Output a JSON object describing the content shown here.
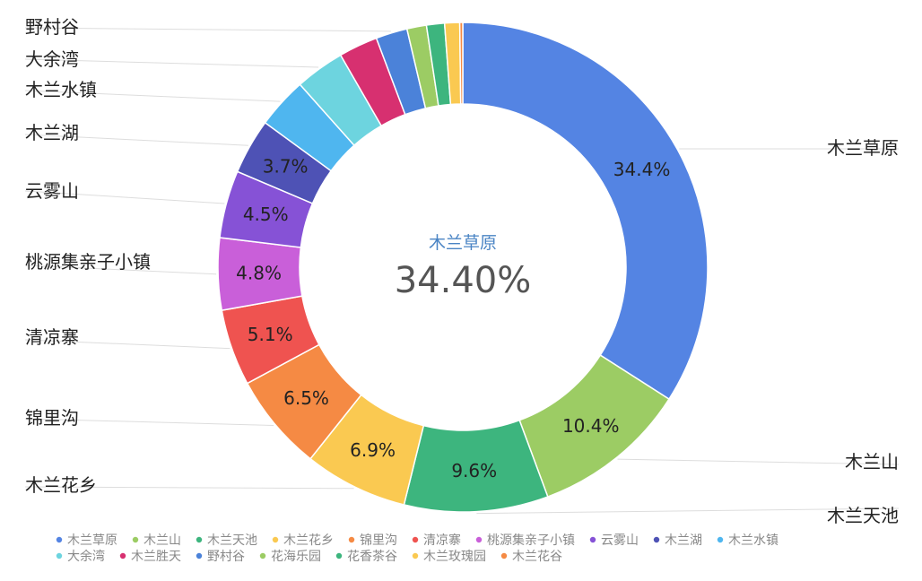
{
  "chart_data": {
    "type": "pie",
    "center": {
      "title": "木兰草原",
      "value": "34.40%"
    },
    "slices": [
      {
        "name": "木兰草原",
        "value": 34.4,
        "color": "#5484e3",
        "label": "34.4%"
      },
      {
        "name": "木兰山",
        "value": 10.4,
        "color": "#9ccc64",
        "label": "10.4%"
      },
      {
        "name": "木兰天池",
        "value": 9.6,
        "color": "#3db57e",
        "label": "9.6%"
      },
      {
        "name": "木兰花乡",
        "value": 6.9,
        "color": "#fac951",
        "label": "6.9%"
      },
      {
        "name": "锦里沟",
        "value": 6.5,
        "color": "#f58a44",
        "label": "6.5%"
      },
      {
        "name": "清凉寨",
        "value": 5.1,
        "color": "#ef5350",
        "label": "5.1%"
      },
      {
        "name": "桃源集亲子小镇",
        "value": 4.8,
        "color": "#c95fd9",
        "label": "4.8%"
      },
      {
        "name": "云雾山",
        "value": 4.5,
        "color": "#8652d6",
        "label": "4.5%"
      },
      {
        "name": "木兰湖",
        "value": 3.7,
        "color": "#4e52b5",
        "label": "3.7%"
      },
      {
        "name": "木兰水镇",
        "value": 3.4,
        "color": "#4fb6ef",
        "label": ""
      },
      {
        "name": "大余湾",
        "value": 3.3,
        "color": "#6dd4df",
        "label": ""
      },
      {
        "name": "木兰胜天",
        "value": 2.6,
        "color": "#d73070",
        "label": ""
      },
      {
        "name": "野村谷",
        "value": 2.1,
        "color": "#4b82d9",
        "label": ""
      },
      {
        "name": "花海乐园",
        "value": 1.3,
        "color": "#9ccc64",
        "label": ""
      },
      {
        "name": "花香茶谷",
        "value": 1.2,
        "color": "#3db57e",
        "label": ""
      },
      {
        "name": "木兰玫瑰园",
        "value": 1.0,
        "color": "#fac951",
        "label": ""
      },
      {
        "name": "木兰花谷",
        "value": 0.2,
        "color": "#f58a44",
        "label": ""
      }
    ],
    "outer_labels": [
      "木兰草原",
      "木兰山",
      "木兰天池",
      "木兰花乡",
      "锦里沟",
      "清凉寨",
      "桃源集亲子小镇",
      "云雾山",
      "木兰湖",
      "木兰水镇",
      "大余湾",
      "野村谷"
    ],
    "legend": {
      "position": "bottom",
      "items": [
        "木兰草原",
        "木兰山",
        "木兰天池",
        "木兰花乡",
        "锦里沟",
        "清凉寨",
        "桃源集亲子小镇",
        "云雾山",
        "木兰湖",
        "木兰水镇",
        "大余湾",
        "木兰胜天",
        "野村谷",
        "花海乐园",
        "花香茶谷",
        "木兰玫瑰园",
        "木兰花谷"
      ]
    }
  }
}
